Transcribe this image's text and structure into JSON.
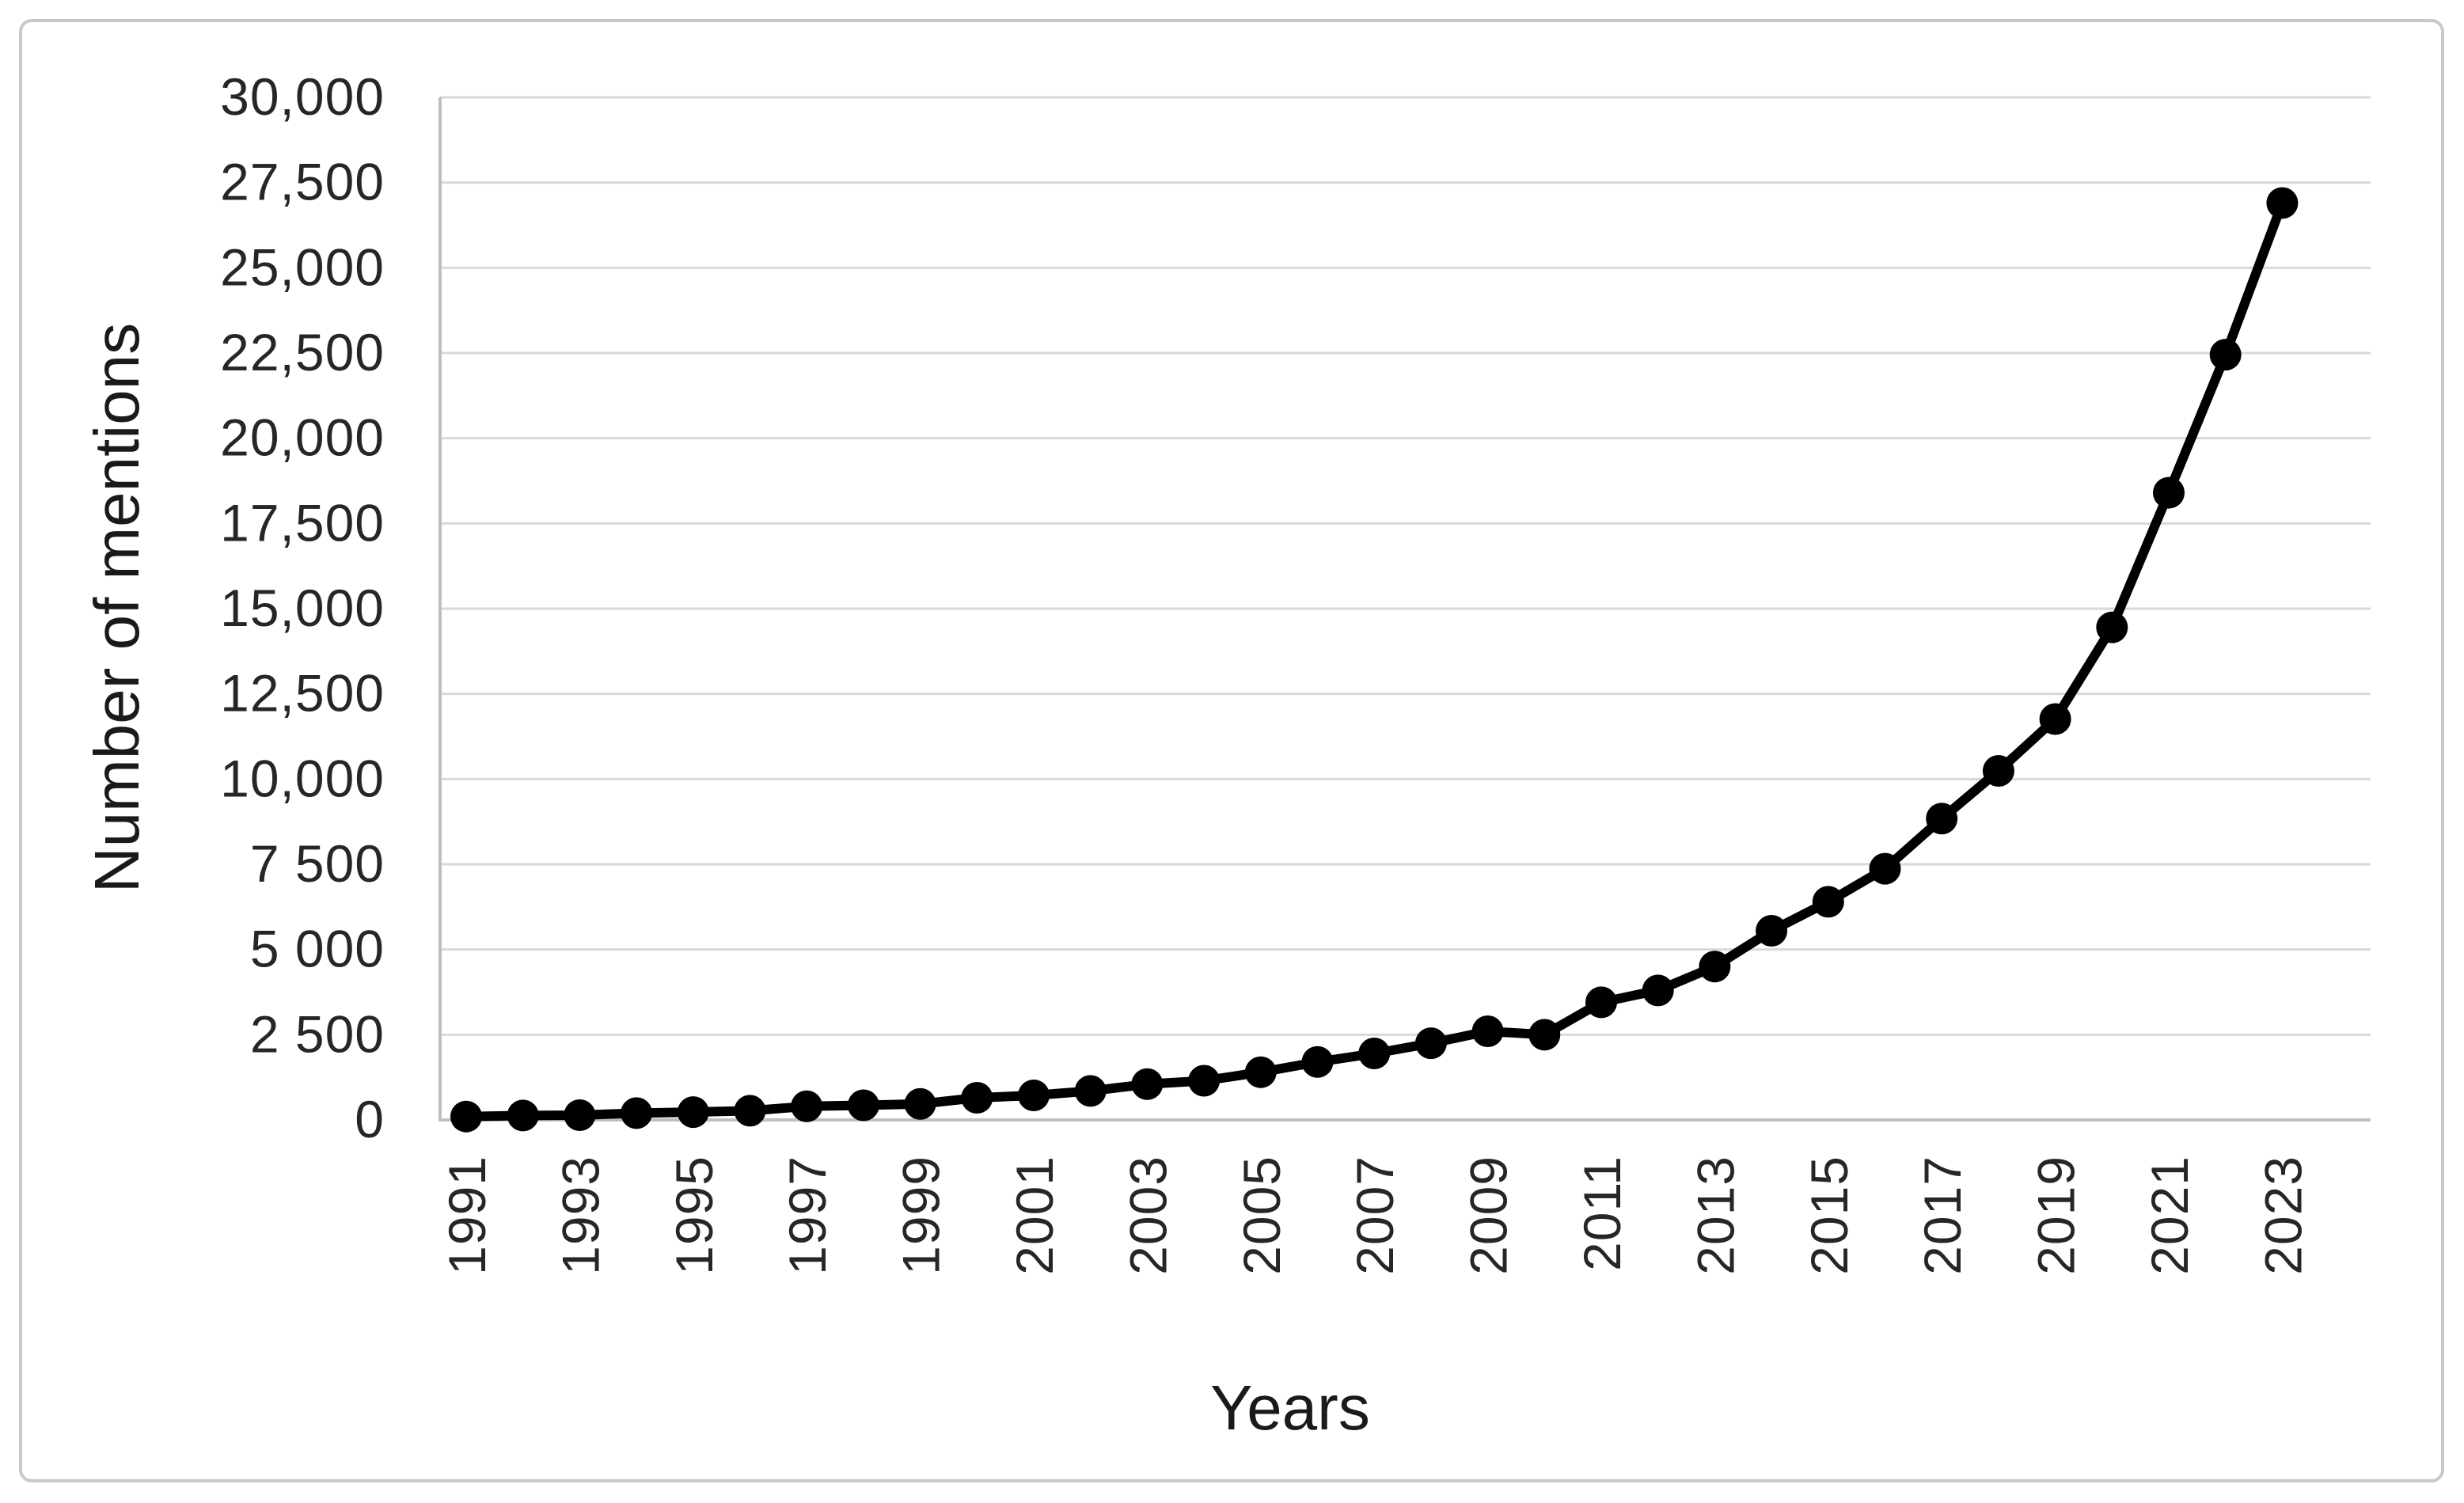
{
  "figure": {
    "background": "#ffffff",
    "border_color": "#c9c9c9"
  },
  "chart_data": {
    "type": "line",
    "title": "",
    "xlabel": "Years",
    "ylabel": "Number of mentions",
    "categories": [
      1991,
      1992,
      1993,
      1994,
      1995,
      1996,
      1997,
      1998,
      1999,
      2000,
      2001,
      2002,
      2003,
      2004,
      2005,
      2006,
      2007,
      2008,
      2009,
      2010,
      2011,
      2012,
      2013,
      2014,
      2015,
      2016,
      2017,
      2018,
      2019,
      2020,
      2021,
      2022,
      2023
    ],
    "values": [
      100,
      130,
      140,
      200,
      230,
      270,
      400,
      430,
      470,
      650,
      720,
      850,
      1050,
      1150,
      1400,
      1700,
      1950,
      2250,
      2600,
      2500,
      3450,
      3800,
      4500,
      5550,
      6400,
      7370,
      8840,
      10240,
      11760,
      14450,
      18400,
      22450,
      26900
    ],
    "ylim": [
      0,
      30000
    ],
    "ytick_step": 2500,
    "ytick_labels": [
      "0",
      "2 500",
      "5 000",
      "7 500",
      "10,000",
      "12,500",
      "15,000",
      "17,500",
      "20,000",
      "22,500",
      "25,000",
      "27,500",
      "30,000"
    ],
    "xtick_labels": [
      "1991",
      "1993",
      "1995",
      "1997",
      "1999",
      "2001",
      "2003",
      "2005",
      "2007",
      "2009",
      "2011",
      "2013",
      "2015",
      "2017",
      "2019",
      "2021",
      "2023"
    ],
    "grid": true,
    "legend": "none",
    "line_color": "#000000",
    "marker": "circle",
    "marker_color": "#000000",
    "gridline_color": "#d9d9d9",
    "axis_line_color": "#bfbfbf",
    "text_color": "#262626"
  }
}
